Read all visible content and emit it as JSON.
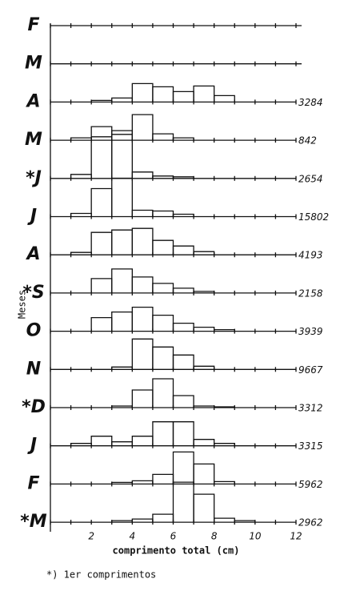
{
  "chart_data": {
    "type": "ridgeline",
    "x_label": "comprimento total (cm)",
    "y_label": "Meses",
    "note": "*) 1er comprimentos",
    "bins": [
      0,
      1,
      2,
      3,
      4,
      5,
      6,
      7,
      8,
      9,
      10,
      11,
      12
    ],
    "xlim": [
      0,
      12
    ],
    "xticks": [
      2,
      4,
      6,
      8,
      10,
      12
    ],
    "panels": [
      {
        "name": "F",
        "n": null,
        "values": [
          0,
          0,
          0,
          0,
          0,
          0,
          0,
          0,
          0,
          0,
          0,
          0
        ]
      },
      {
        "name": "M",
        "n": null,
        "values": [
          0,
          0,
          0,
          0,
          0,
          0,
          0,
          0,
          0,
          0,
          0,
          0
        ]
      },
      {
        "name": "A",
        "n": 3284,
        "values": [
          0,
          0,
          2,
          5,
          23,
          19,
          13,
          20,
          8,
          0,
          0,
          0
        ]
      },
      {
        "name": "M",
        "n": 842,
        "values": [
          0,
          3,
          17,
          12,
          32,
          8,
          3,
          0,
          0,
          0,
          0,
          0
        ]
      },
      {
        "name": "*J",
        "n": 2654,
        "values": [
          0,
          5,
          52,
          55,
          8,
          3,
          2,
          0,
          0,
          0,
          0,
          0
        ]
      },
      {
        "name": "J",
        "n": 15802,
        "values": [
          0,
          4,
          35,
          48,
          8,
          7,
          3,
          0,
          0,
          0,
          0,
          0
        ]
      },
      {
        "name": "A",
        "n": 4193,
        "values": [
          0,
          3,
          28,
          31,
          33,
          18,
          11,
          4,
          0,
          0,
          0,
          0
        ]
      },
      {
        "name": "*S",
        "n": 2158,
        "values": [
          0,
          0,
          18,
          30,
          20,
          12,
          6,
          2,
          0,
          0,
          0,
          0
        ]
      },
      {
        "name": "O",
        "n": 3939,
        "values": [
          0,
          0,
          17,
          24,
          30,
          20,
          10,
          5,
          2,
          0,
          0,
          0
        ]
      },
      {
        "name": "N",
        "n": 9667,
        "values": [
          0,
          0,
          0,
          3,
          38,
          28,
          18,
          4,
          0,
          0,
          0,
          0
        ]
      },
      {
        "name": "*D",
        "n": 3312,
        "values": [
          0,
          0,
          0,
          2,
          22,
          36,
          15,
          2,
          1,
          0,
          0,
          0
        ]
      },
      {
        "name": "J",
        "n": 3315,
        "values": [
          0,
          3,
          12,
          5,
          12,
          30,
          30,
          8,
          3,
          0,
          0,
          0
        ]
      },
      {
        "name": "F",
        "n": 5962,
        "values": [
          0,
          0,
          0,
          2,
          4,
          12,
          40,
          25,
          3,
          0,
          0,
          0
        ]
      },
      {
        "name": "*M",
        "n": 2962,
        "values": [
          0,
          0,
          0,
          2,
          4,
          10,
          50,
          35,
          5,
          2,
          0,
          0
        ]
      }
    ]
  }
}
